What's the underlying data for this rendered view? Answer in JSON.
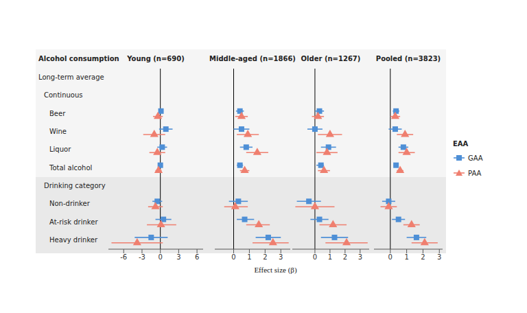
{
  "row_header": "Alcohol consumption",
  "x_label": "Effect size (β)",
  "legend_title": "EAA",
  "groups": [
    {
      "title": "Long-term average",
      "sections": [
        {
          "title": "Continuous",
          "rows": [
            "Beer",
            "Wine",
            "Liquor",
            "Total alcohol"
          ]
        },
        {
          "title": "Drinking category",
          "rows": [
            "Non-drinker",
            "At-risk drinker",
            "Heavy drinker"
          ]
        }
      ]
    }
  ],
  "chart_data": [
    {
      "type": "forest",
      "title": "Young (n=690)",
      "xlim": [
        -8.5,
        7
      ],
      "xticks": [
        -6,
        -3,
        0,
        3,
        6
      ],
      "reference_line": 0,
      "series": [
        {
          "name": "GAA",
          "color": "#4e8fd6",
          "marker": "square",
          "values": [
            0.1,
            0.9,
            0.3,
            0.0,
            -0.5,
            0.5,
            -1.5
          ],
          "ci_low": [
            -0.3,
            -0.2,
            -0.5,
            -0.3,
            -1.3,
            -0.8,
            -4.2
          ],
          "ci_high": [
            0.5,
            2.0,
            1.1,
            0.3,
            0.3,
            1.8,
            1.2
          ]
        },
        {
          "name": "PAA",
          "color": "#ef7f6f",
          "marker": "triangle",
          "values": [
            -0.4,
            -1.0,
            -0.5,
            -0.3,
            -0.8,
            0.1,
            -3.8
          ],
          "ci_low": [
            -1.2,
            -2.8,
            -1.8,
            -0.8,
            -2.0,
            -2.2,
            -8.0
          ],
          "ci_high": [
            0.4,
            0.8,
            0.8,
            0.2,
            0.4,
            2.6,
            0.4
          ]
        }
      ]
    },
    {
      "type": "forest",
      "title": "Middle-aged (n=1866)",
      "xlim": [
        -1.2,
        3.6
      ],
      "xticks": [
        0,
        1,
        2,
        3
      ],
      "reference_line": 0,
      "series": [
        {
          "name": "GAA",
          "color": "#4e8fd6",
          "marker": "square",
          "values": [
            0.4,
            0.5,
            0.8,
            0.4,
            0.3,
            0.7,
            2.2
          ],
          "ci_low": [
            0.15,
            0.0,
            0.4,
            0.2,
            -0.3,
            0.2,
            1.4
          ],
          "ci_high": [
            0.65,
            1.0,
            1.2,
            0.6,
            0.9,
            1.3,
            3.0
          ]
        },
        {
          "name": "PAA",
          "color": "#ef7f6f",
          "marker": "triangle",
          "values": [
            0.5,
            0.9,
            1.5,
            0.7,
            0.1,
            1.6,
            2.5
          ],
          "ci_low": [
            0.1,
            0.2,
            0.8,
            0.4,
            -0.6,
            0.8,
            1.2
          ],
          "ci_high": [
            0.9,
            1.6,
            2.2,
            1.0,
            0.9,
            2.3,
            3.5
          ]
        }
      ]
    },
    {
      "type": "forest",
      "title": "Older (n=1267)",
      "xlim": [
        -1.5,
        3.6
      ],
      "xticks": [
        0,
        1,
        2,
        3
      ],
      "reference_line": 0,
      "series": [
        {
          "name": "GAA",
          "color": "#4e8fd6",
          "marker": "square",
          "values": [
            0.3,
            0.0,
            0.9,
            0.4,
            -0.4,
            0.3,
            1.3
          ],
          "ci_low": [
            0.0,
            -0.5,
            0.4,
            0.1,
            -1.2,
            -0.3,
            0.4
          ],
          "ci_high": [
            0.6,
            0.5,
            1.4,
            0.6,
            0.4,
            0.9,
            2.2
          ]
        },
        {
          "name": "PAA",
          "color": "#ef7f6f",
          "marker": "triangle",
          "values": [
            0.2,
            1.0,
            0.8,
            0.6,
            0.0,
            1.2,
            2.1
          ],
          "ci_low": [
            -0.2,
            0.2,
            0.1,
            0.2,
            -1.3,
            0.3,
            0.7
          ],
          "ci_high": [
            0.6,
            1.8,
            1.5,
            1.0,
            1.3,
            2.1,
            3.5
          ]
        }
      ]
    },
    {
      "type": "forest",
      "title": "Pooled (n=3823)",
      "xlim": [
        -1,
        3.2
      ],
      "xticks": [
        0,
        1,
        2,
        3
      ],
      "reference_line": 0,
      "series": [
        {
          "name": "GAA",
          "color": "#4e8fd6",
          "marker": "square",
          "values": [
            0.35,
            0.3,
            0.8,
            0.35,
            -0.1,
            0.5,
            1.6
          ],
          "ci_low": [
            0.15,
            -0.1,
            0.5,
            0.2,
            -0.5,
            0.1,
            1.0
          ],
          "ci_high": [
            0.55,
            0.7,
            1.1,
            0.5,
            0.3,
            0.9,
            2.2
          ]
        },
        {
          "name": "PAA",
          "color": "#ef7f6f",
          "marker": "triangle",
          "values": [
            0.3,
            0.9,
            1.0,
            0.6,
            -0.1,
            1.3,
            2.1
          ],
          "ci_low": [
            0.0,
            0.4,
            0.5,
            0.4,
            -0.6,
            0.8,
            1.3
          ],
          "ci_high": [
            0.6,
            1.4,
            1.5,
            0.8,
            0.4,
            1.8,
            2.9
          ]
        }
      ]
    }
  ]
}
